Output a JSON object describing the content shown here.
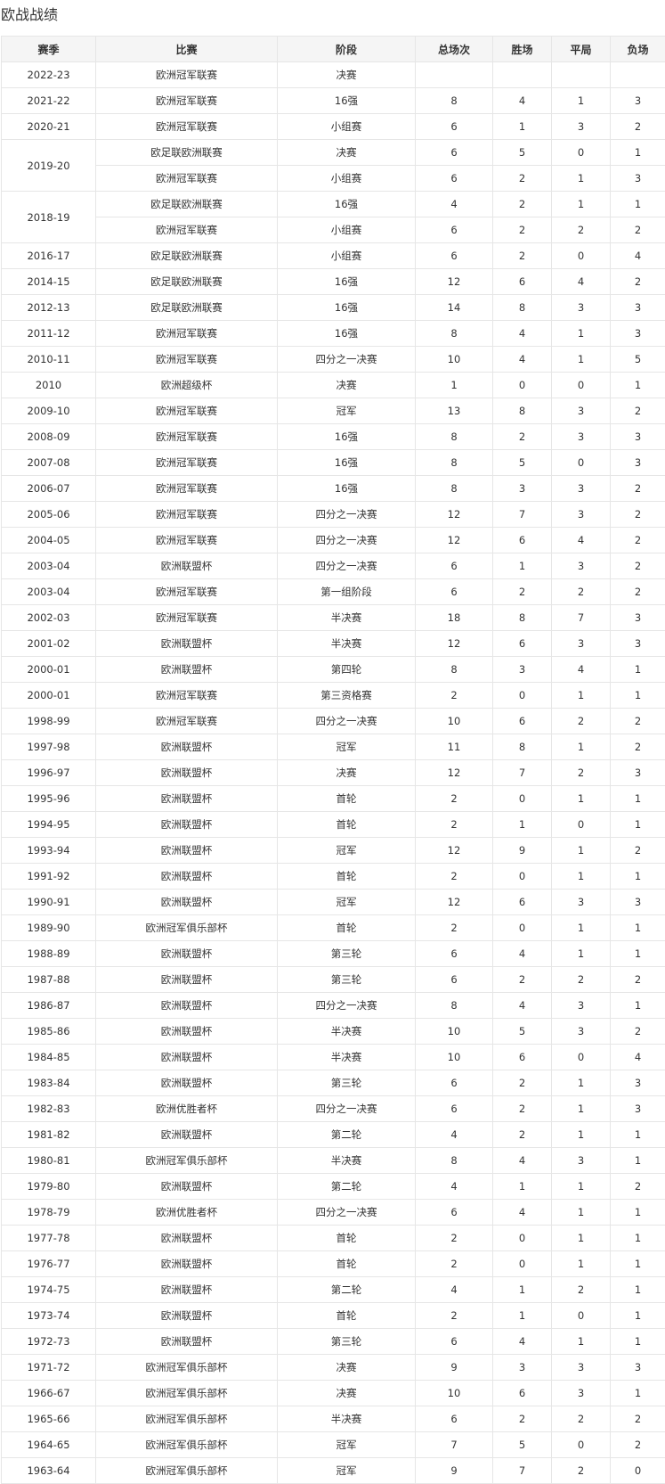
{
  "title": "欧战战绩",
  "columns": [
    "赛季",
    "比赛",
    "阶段",
    "总场次",
    "胜场",
    "平局",
    "负场"
  ],
  "rows": [
    {
      "season": "2022-23",
      "span": 1,
      "comp": "欧洲冠军联赛",
      "stage": "决赛",
      "p": "",
      "w": "",
      "d": "",
      "l": ""
    },
    {
      "season": "2021-22",
      "span": 1,
      "comp": "欧洲冠军联赛",
      "stage": "16强",
      "p": "8",
      "w": "4",
      "d": "1",
      "l": "3"
    },
    {
      "season": "2020-21",
      "span": 1,
      "comp": "欧洲冠军联赛",
      "stage": "小组赛",
      "p": "6",
      "w": "1",
      "d": "3",
      "l": "2"
    },
    {
      "season": "2019-20",
      "span": 2,
      "comp": "欧足联欧洲联赛",
      "stage": "决赛",
      "p": "6",
      "w": "5",
      "d": "0",
      "l": "1"
    },
    {
      "comp": "欧洲冠军联赛",
      "stage": "小组赛",
      "p": "6",
      "w": "2",
      "d": "1",
      "l": "3"
    },
    {
      "season": "2018-19",
      "span": 2,
      "comp": "欧足联欧洲联赛",
      "stage": "16强",
      "p": "4",
      "w": "2",
      "d": "1",
      "l": "1"
    },
    {
      "comp": "欧洲冠军联赛",
      "stage": "小组赛",
      "p": "6",
      "w": "2",
      "d": "2",
      "l": "2"
    },
    {
      "season": "2016-17",
      "span": 1,
      "comp": "欧足联欧洲联赛",
      "stage": "小组赛",
      "p": "6",
      "w": "2",
      "d": "0",
      "l": "4"
    },
    {
      "season": "2014-15",
      "span": 1,
      "comp": "欧足联欧洲联赛",
      "stage": "16强",
      "p": "12",
      "w": "6",
      "d": "4",
      "l": "2"
    },
    {
      "season": "2012-13",
      "span": 1,
      "comp": "欧足联欧洲联赛",
      "stage": "16强",
      "p": "14",
      "w": "8",
      "d": "3",
      "l": "3"
    },
    {
      "season": "2011-12",
      "span": 1,
      "comp": "欧洲冠军联赛",
      "stage": "16强",
      "p": "8",
      "w": "4",
      "d": "1",
      "l": "3"
    },
    {
      "season": "2010-11",
      "span": 1,
      "comp": "欧洲冠军联赛",
      "stage": "四分之一决赛",
      "p": "10",
      "w": "4",
      "d": "1",
      "l": "5"
    },
    {
      "season": "2010",
      "span": 1,
      "comp": "欧洲超级杯",
      "stage": "决赛",
      "p": "1",
      "w": "0",
      "d": "0",
      "l": "1"
    },
    {
      "season": "2009-10",
      "span": 1,
      "comp": "欧洲冠军联赛",
      "stage": "冠军",
      "p": "13",
      "w": "8",
      "d": "3",
      "l": "2"
    },
    {
      "season": "2008-09",
      "span": 1,
      "comp": "欧洲冠军联赛",
      "stage": "16强",
      "p": "8",
      "w": "2",
      "d": "3",
      "l": "3"
    },
    {
      "season": "2007-08",
      "span": 1,
      "comp": "欧洲冠军联赛",
      "stage": "16强",
      "p": "8",
      "w": "5",
      "d": "0",
      "l": "3"
    },
    {
      "season": "2006-07",
      "span": 1,
      "comp": "欧洲冠军联赛",
      "stage": "16强",
      "p": "8",
      "w": "3",
      "d": "3",
      "l": "2"
    },
    {
      "season": "2005-06",
      "span": 1,
      "comp": "欧洲冠军联赛",
      "stage": "四分之一决赛",
      "p": "12",
      "w": "7",
      "d": "3",
      "l": "2"
    },
    {
      "season": "2004-05",
      "span": 1,
      "comp": "欧洲冠军联赛",
      "stage": "四分之一决赛",
      "p": "12",
      "w": "6",
      "d": "4",
      "l": "2"
    },
    {
      "season": "2003-04",
      "span": 1,
      "comp": "欧洲联盟杯",
      "stage": "四分之一决赛",
      "p": "6",
      "w": "1",
      "d": "3",
      "l": "2"
    },
    {
      "season": "2003-04",
      "span": 1,
      "comp": "欧洲冠军联赛",
      "stage": "第一组阶段",
      "p": "6",
      "w": "2",
      "d": "2",
      "l": "2"
    },
    {
      "season": "2002-03",
      "span": 1,
      "comp": "欧洲冠军联赛",
      "stage": "半决赛",
      "p": "18",
      "w": "8",
      "d": "7",
      "l": "3"
    },
    {
      "season": "2001-02",
      "span": 1,
      "comp": "欧洲联盟杯",
      "stage": "半决赛",
      "p": "12",
      "w": "6",
      "d": "3",
      "l": "3"
    },
    {
      "season": "2000-01",
      "span": 1,
      "comp": "欧洲联盟杯",
      "stage": "第四轮",
      "p": "8",
      "w": "3",
      "d": "4",
      "l": "1"
    },
    {
      "season": "2000-01",
      "span": 1,
      "comp": "欧洲冠军联赛",
      "stage": "第三资格赛",
      "p": "2",
      "w": "0",
      "d": "1",
      "l": "1"
    },
    {
      "season": "1998-99",
      "span": 1,
      "comp": "欧洲冠军联赛",
      "stage": "四分之一决赛",
      "p": "10",
      "w": "6",
      "d": "2",
      "l": "2"
    },
    {
      "season": "1997-98",
      "span": 1,
      "comp": "欧洲联盟杯",
      "stage": "冠军",
      "p": "11",
      "w": "8",
      "d": "1",
      "l": "2"
    },
    {
      "season": "1996-97",
      "span": 1,
      "comp": "欧洲联盟杯",
      "stage": "决赛",
      "p": "12",
      "w": "7",
      "d": "2",
      "l": "3"
    },
    {
      "season": "1995-96",
      "span": 1,
      "comp": "欧洲联盟杯",
      "stage": "首轮",
      "p": "2",
      "w": "0",
      "d": "1",
      "l": "1"
    },
    {
      "season": "1994-95",
      "span": 1,
      "comp": "欧洲联盟杯",
      "stage": "首轮",
      "p": "2",
      "w": "1",
      "d": "0",
      "l": "1"
    },
    {
      "season": "1993-94",
      "span": 1,
      "comp": "欧洲联盟杯",
      "stage": "冠军",
      "p": "12",
      "w": "9",
      "d": "1",
      "l": "2"
    },
    {
      "season": "1991-92",
      "span": 1,
      "comp": "欧洲联盟杯",
      "stage": "首轮",
      "p": "2",
      "w": "0",
      "d": "1",
      "l": "1"
    },
    {
      "season": "1990-91",
      "span": 1,
      "comp": "欧洲联盟杯",
      "stage": "冠军",
      "p": "12",
      "w": "6",
      "d": "3",
      "l": "3"
    },
    {
      "season": "1989-90",
      "span": 1,
      "comp": "欧洲冠军俱乐部杯",
      "stage": "首轮",
      "p": "2",
      "w": "0",
      "d": "1",
      "l": "1"
    },
    {
      "season": "1988-89",
      "span": 1,
      "comp": "欧洲联盟杯",
      "stage": "第三轮",
      "p": "6",
      "w": "4",
      "d": "1",
      "l": "1"
    },
    {
      "season": "1987-88",
      "span": 1,
      "comp": "欧洲联盟杯",
      "stage": "第三轮",
      "p": "6",
      "w": "2",
      "d": "2",
      "l": "2"
    },
    {
      "season": "1986-87",
      "span": 1,
      "comp": "欧洲联盟杯",
      "stage": "四分之一决赛",
      "p": "8",
      "w": "4",
      "d": "3",
      "l": "1"
    },
    {
      "season": "1985-86",
      "span": 1,
      "comp": "欧洲联盟杯",
      "stage": "半决赛",
      "p": "10",
      "w": "5",
      "d": "3",
      "l": "2"
    },
    {
      "season": "1984-85",
      "span": 1,
      "comp": "欧洲联盟杯",
      "stage": "半决赛",
      "p": "10",
      "w": "6",
      "d": "0",
      "l": "4"
    },
    {
      "season": "1983-84",
      "span": 1,
      "comp": "欧洲联盟杯",
      "stage": "第三轮",
      "p": "6",
      "w": "2",
      "d": "1",
      "l": "3"
    },
    {
      "season": "1982-83",
      "span": 1,
      "comp": "欧洲优胜者杯",
      "stage": "四分之一决赛",
      "p": "6",
      "w": "2",
      "d": "1",
      "l": "3"
    },
    {
      "season": "1981-82",
      "span": 1,
      "comp": "欧洲联盟杯",
      "stage": "第二轮",
      "p": "4",
      "w": "2",
      "d": "1",
      "l": "1"
    },
    {
      "season": "1980-81",
      "span": 1,
      "comp": "欧洲冠军俱乐部杯",
      "stage": "半决赛",
      "p": "8",
      "w": "4",
      "d": "3",
      "l": "1"
    },
    {
      "season": "1979-80",
      "span": 1,
      "comp": "欧洲联盟杯",
      "stage": "第二轮",
      "p": "4",
      "w": "1",
      "d": "1",
      "l": "2"
    },
    {
      "season": "1978-79",
      "span": 1,
      "comp": "欧洲优胜者杯",
      "stage": "四分之一决赛",
      "p": "6",
      "w": "4",
      "d": "1",
      "l": "1"
    },
    {
      "season": "1977-78",
      "span": 1,
      "comp": "欧洲联盟杯",
      "stage": "首轮",
      "p": "2",
      "w": "0",
      "d": "1",
      "l": "1"
    },
    {
      "season": "1976-77",
      "span": 1,
      "comp": "欧洲联盟杯",
      "stage": "首轮",
      "p": "2",
      "w": "0",
      "d": "1",
      "l": "1"
    },
    {
      "season": "1974-75",
      "span": 1,
      "comp": "欧洲联盟杯",
      "stage": "第二轮",
      "p": "4",
      "w": "1",
      "d": "2",
      "l": "1"
    },
    {
      "season": "1973-74",
      "span": 1,
      "comp": "欧洲联盟杯",
      "stage": "首轮",
      "p": "2",
      "w": "1",
      "d": "0",
      "l": "1"
    },
    {
      "season": "1972-73",
      "span": 1,
      "comp": "欧洲联盟杯",
      "stage": "第三轮",
      "p": "6",
      "w": "4",
      "d": "1",
      "l": "1"
    },
    {
      "season": "1971-72",
      "span": 1,
      "comp": "欧洲冠军俱乐部杯",
      "stage": "决赛",
      "p": "9",
      "w": "3",
      "d": "3",
      "l": "3"
    },
    {
      "season": "1966-67",
      "span": 1,
      "comp": "欧洲冠军俱乐部杯",
      "stage": "决赛",
      "p": "10",
      "w": "6",
      "d": "3",
      "l": "1"
    },
    {
      "season": "1965-66",
      "span": 1,
      "comp": "欧洲冠军俱乐部杯",
      "stage": "半决赛",
      "p": "6",
      "w": "2",
      "d": "2",
      "l": "2"
    },
    {
      "season": "1964-65",
      "span": 1,
      "comp": "欧洲冠军俱乐部杯",
      "stage": "冠军",
      "p": "7",
      "w": "5",
      "d": "0",
      "l": "2"
    },
    {
      "season": "1963-64",
      "span": 1,
      "comp": "欧洲冠军俱乐部杯",
      "stage": "冠军",
      "p": "9",
      "w": "7",
      "d": "2",
      "l": "0"
    }
  ]
}
